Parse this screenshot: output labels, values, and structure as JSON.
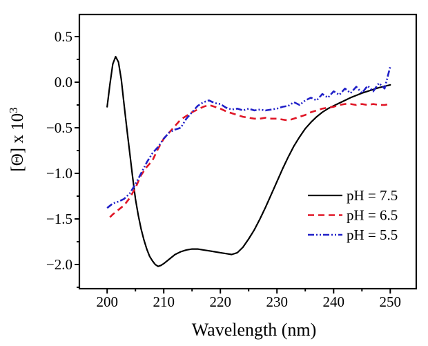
{
  "chart_data": {
    "type": "line",
    "title": "",
    "xlabel": "Wavelength (nm)",
    "ylabel_base": "[Θ] x 10",
    "ylabel_exp": "3",
    "xlim": [
      195.1,
      254.6
    ],
    "ylim": [
      -2.265,
      0.742
    ],
    "x_ticks": [
      200,
      210,
      220,
      230,
      240,
      250
    ],
    "x_tick_labels": [
      "200",
      "210",
      "220",
      "230",
      "240",
      "250"
    ],
    "x_minor_ticks": [
      205,
      215,
      225,
      235,
      245
    ],
    "y_ticks": [
      0.5,
      0.0,
      -0.5,
      -1.0,
      -1.5,
      -2.0
    ],
    "y_tick_labels": [
      "0.5",
      "0.0",
      "−0.5",
      "−1.0",
      "−1.5",
      "−2.0"
    ],
    "y_minor_ticks": [
      0.25,
      -0.25,
      -0.75,
      -1.25,
      -1.75,
      -2.25
    ],
    "grid": false,
    "legend_position": "lower right",
    "axis_color": "#000000",
    "background_color": "#ffffff",
    "series": [
      {
        "name": "pH = 7.5",
        "color": "#000000",
        "style": "solid",
        "width": 2.2,
        "x": [
          200,
          200.5,
          201,
          201.5,
          202,
          202.5,
          203,
          203.5,
          204,
          204.5,
          205,
          205.5,
          206,
          206.5,
          207,
          207.5,
          208,
          208.5,
          209,
          209.5,
          210,
          211,
          212,
          213,
          214,
          215,
          216,
          217,
          218,
          219,
          220,
          221,
          222,
          223,
          224,
          225,
          226,
          227,
          228,
          229,
          230,
          231,
          232,
          233,
          234,
          235,
          236,
          237,
          238,
          239,
          240,
          241,
          242,
          243,
          244,
          245,
          246,
          247,
          248,
          249,
          250
        ],
        "y": [
          -0.27,
          -0.02,
          0.2,
          0.28,
          0.22,
          0.03,
          -0.25,
          -0.52,
          -0.78,
          -1.04,
          -1.28,
          -1.46,
          -1.61,
          -1.73,
          -1.83,
          -1.91,
          -1.96,
          -2.0,
          -2.02,
          -2.01,
          -1.99,
          -1.94,
          -1.89,
          -1.86,
          -1.84,
          -1.83,
          -1.83,
          -1.84,
          -1.85,
          -1.86,
          -1.87,
          -1.88,
          -1.89,
          -1.87,
          -1.81,
          -1.72,
          -1.62,
          -1.5,
          -1.37,
          -1.23,
          -1.09,
          -0.95,
          -0.82,
          -0.7,
          -0.6,
          -0.51,
          -0.44,
          -0.38,
          -0.33,
          -0.29,
          -0.26,
          -0.23,
          -0.2,
          -0.17,
          -0.145,
          -0.12,
          -0.1,
          -0.08,
          -0.06,
          -0.045,
          -0.03
        ]
      },
      {
        "name": "pH = 6.5",
        "color": "#e01626",
        "style": "dashed",
        "width": 2.6,
        "x": [
          200.5,
          201,
          202,
          203,
          204,
          205,
          206,
          207,
          208,
          209,
          210,
          211,
          212,
          213,
          214,
          215,
          216,
          217,
          218,
          219,
          220,
          221,
          222,
          223,
          224,
          225,
          226,
          227,
          228,
          229,
          230,
          231,
          232,
          233,
          234,
          235,
          236,
          237,
          238,
          239,
          240,
          241,
          242,
          243,
          244,
          245,
          246,
          247,
          248,
          249,
          250
        ],
        "y": [
          -1.48,
          -1.45,
          -1.4,
          -1.35,
          -1.27,
          -1.16,
          -1.02,
          -0.93,
          -0.86,
          -0.73,
          -0.62,
          -0.55,
          -0.48,
          -0.41,
          -0.37,
          -0.33,
          -0.3,
          -0.27,
          -0.25,
          -0.27,
          -0.29,
          -0.32,
          -0.34,
          -0.36,
          -0.38,
          -0.39,
          -0.4,
          -0.4,
          -0.39,
          -0.4,
          -0.4,
          -0.41,
          -0.42,
          -0.4,
          -0.38,
          -0.36,
          -0.33,
          -0.31,
          -0.29,
          -0.28,
          -0.27,
          -0.25,
          -0.24,
          -0.24,
          -0.25,
          -0.24,
          -0.25,
          -0.24,
          -0.25,
          -0.25,
          -0.24
        ]
      },
      {
        "name": "pH = 5.5",
        "color": "#2020c8",
        "style": "dash-dot-dot",
        "width": 2.6,
        "x": [
          200,
          201,
          202,
          203,
          204,
          205,
          206,
          207,
          208,
          209,
          210,
          211,
          212,
          213,
          214,
          215,
          216,
          217,
          218,
          219,
          220,
          221,
          222,
          223,
          224,
          225,
          226,
          227,
          228,
          229,
          230,
          231,
          232,
          233,
          234,
          235,
          236,
          237,
          238,
          239,
          240,
          241,
          242,
          243,
          244,
          245,
          246,
          247,
          248,
          249,
          250
        ],
        "y": [
          -1.38,
          -1.33,
          -1.31,
          -1.28,
          -1.22,
          -1.12,
          -1.0,
          -0.88,
          -0.78,
          -0.71,
          -0.62,
          -0.55,
          -0.52,
          -0.5,
          -0.4,
          -0.33,
          -0.26,
          -0.22,
          -0.2,
          -0.23,
          -0.24,
          -0.28,
          -0.3,
          -0.29,
          -0.31,
          -0.29,
          -0.31,
          -0.3,
          -0.31,
          -0.3,
          -0.29,
          -0.27,
          -0.26,
          -0.22,
          -0.25,
          -0.2,
          -0.17,
          -0.2,
          -0.13,
          -0.17,
          -0.1,
          -0.14,
          -0.07,
          -0.12,
          -0.05,
          -0.12,
          -0.04,
          -0.1,
          -0.01,
          -0.07,
          0.17
        ]
      }
    ]
  },
  "legend": {
    "items": [
      {
        "label": "pH = 7.5"
      },
      {
        "label": "pH = 6.5"
      },
      {
        "label": "pH = 5.5"
      }
    ]
  }
}
